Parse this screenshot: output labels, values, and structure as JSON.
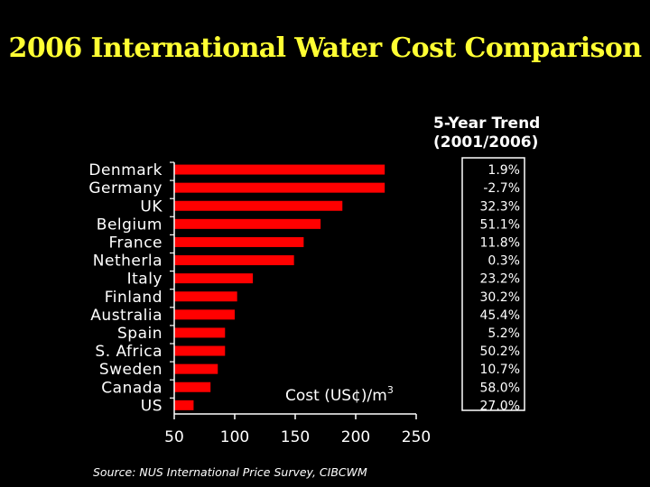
{
  "title": "2006 International Water Cost Comparison",
  "source": "Source: NUS International Price Survey, CIBCWM",
  "colors": {
    "background": "#000000",
    "title": "#ffff33",
    "bar": "#ff0000",
    "text": "#ffffff"
  },
  "chart_data": {
    "type": "bar",
    "orientation": "horizontal",
    "title": "2006 International Water Cost Comparison",
    "xlabel": "Cost (US¢)/m",
    "xlabel_superscript": "3",
    "xlim": [
      50,
      250
    ],
    "xticks": [
      50,
      100,
      150,
      200,
      250
    ],
    "categories": [
      "Denmark",
      "Germany",
      "UK",
      "Belgium",
      "France",
      "Netherla",
      "Italy",
      "Finland",
      "Australia",
      "Spain",
      "S. Africa",
      "Sweden",
      "Canada",
      "US"
    ],
    "values": [
      224,
      224,
      189,
      171,
      157,
      149,
      115,
      102,
      100,
      92,
      92,
      86,
      80,
      66
    ],
    "trend": {
      "title_line1": "5-Year Trend",
      "title_line2": "(2001/2006)",
      "values": [
        "1.9%",
        "-2.7%",
        "32.3%",
        "51.1%",
        "11.8%",
        "0.3%",
        "23.2%",
        "30.2%",
        "45.4%",
        "5.2%",
        "50.2%",
        "10.7%",
        "58.0%",
        "27.0%"
      ]
    }
  }
}
